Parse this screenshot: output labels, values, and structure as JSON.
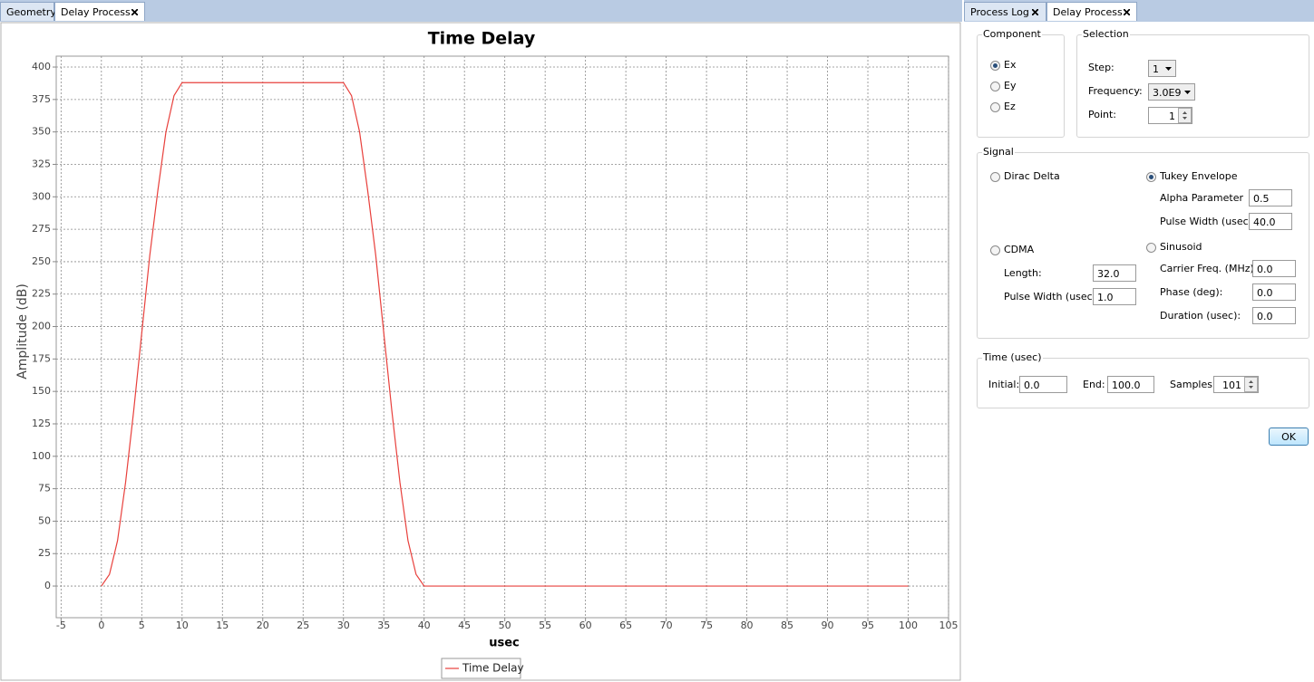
{
  "left_tabs": [
    "Geometry",
    "Delay Process"
  ],
  "right_tabs": [
    "Process Log",
    "Delay Process"
  ],
  "chart_data": {
    "type": "line",
    "title": "Time Delay",
    "x_label": "usec",
    "y_label": "Amplitude (dB)",
    "x": [
      0,
      1,
      2,
      3,
      4,
      5,
      6,
      7,
      8,
      9,
      10,
      11,
      12,
      13,
      14,
      15,
      16,
      17,
      18,
      19,
      20,
      21,
      22,
      23,
      24,
      25,
      26,
      27,
      28,
      29,
      30,
      31,
      32,
      33,
      34,
      35,
      36,
      37,
      38,
      39,
      40,
      41,
      42,
      43,
      44,
      45,
      46,
      47,
      48,
      49,
      50,
      51,
      52,
      53,
      54,
      55,
      56,
      57,
      58,
      59,
      60,
      61,
      62,
      63,
      64,
      65,
      66,
      67,
      68,
      69,
      70,
      71,
      72,
      73,
      74,
      75,
      76,
      77,
      78,
      79,
      80,
      81,
      82,
      83,
      84,
      85,
      86,
      87,
      88,
      89,
      90,
      91,
      92,
      93,
      94,
      95,
      96,
      97,
      98,
      99,
      100
    ],
    "series": [
      {
        "name": "Time Delay",
        "color": "#e8403c",
        "values": [
          0,
          9,
          35,
          80,
          135,
          195,
          255,
          305,
          350,
          378,
          388,
          388,
          388,
          388,
          388,
          388,
          388,
          388,
          388,
          388,
          388,
          388,
          388,
          388,
          388,
          388,
          388,
          388,
          388,
          388,
          388,
          378,
          350,
          305,
          255,
          195,
          135,
          80,
          35,
          9,
          0,
          0,
          0,
          0,
          0,
          0,
          0,
          0,
          0,
          0,
          0,
          0,
          0,
          0,
          0,
          0,
          0,
          0,
          0,
          0,
          0,
          0,
          0,
          0,
          0,
          0,
          0,
          0,
          0,
          0,
          0,
          0,
          0,
          0,
          0,
          0,
          0,
          0,
          0,
          0,
          0,
          0,
          0,
          0,
          0,
          0,
          0,
          0,
          0,
          0,
          0,
          0,
          0,
          0,
          0,
          0,
          0,
          0,
          0,
          0,
          0
        ]
      }
    ],
    "xlim": [
      -5.6,
      105
    ],
    "xticks": [
      -5,
      0,
      5,
      10,
      15,
      20,
      25,
      30,
      35,
      40,
      45,
      50,
      55,
      60,
      65,
      70,
      75,
      80,
      85,
      90,
      95,
      100,
      105
    ],
    "ylim": [
      -24.4,
      408.4
    ],
    "yticks": [
      0,
      25,
      50,
      75,
      100,
      125,
      150,
      175,
      200,
      225,
      250,
      275,
      300,
      325,
      350,
      375,
      400
    ],
    "grid": true,
    "legend": "bottom"
  },
  "form": {
    "component": {
      "title": "Component",
      "options": [
        "Ex",
        "Ey",
        "Ez"
      ],
      "selected": 0
    },
    "selection": {
      "title": "Selection",
      "step_label": "Step:",
      "step": "1",
      "frequency_label": "Frequency:",
      "frequency": "3.0E9",
      "point_label": "Point:",
      "point": "1"
    },
    "signal": {
      "title": "Signal",
      "options": [
        "Dirac Delta",
        "Tukey Envelope",
        "CDMA",
        "Sinusoid"
      ],
      "selected": 1,
      "alpha_label": "Alpha Parameter",
      "alpha": "0.5",
      "tukey_width_label": "Pulse Width (usec)",
      "tukey_width": "40.0",
      "length_label": "Length:",
      "length": "32.0",
      "cdma_width_label": "Pulse Width (usec):",
      "cdma_width": "1.0",
      "carrier_label": "Carrier Freq. (MHz):",
      "carrier": "0.0",
      "phase_label": "Phase (deg):",
      "phase": "0.0",
      "duration_label": "Duration (usec):",
      "duration": "0.0"
    },
    "time": {
      "title": "Time (usec)",
      "initial_label": "Initial:",
      "initial": "0.0",
      "end_label": "End:",
      "end": "100.0",
      "samples_label": "Samples:",
      "samples": "101"
    },
    "ok": "OK"
  }
}
